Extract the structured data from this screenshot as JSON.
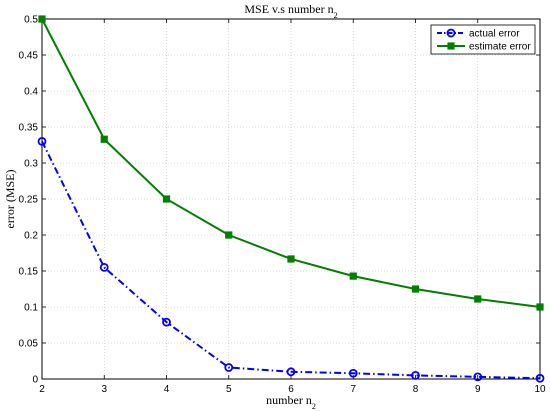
{
  "chart_data": {
    "type": "line",
    "title": "MSE v.s number n",
    "title_subscript": "2",
    "xlabel": "number n",
    "xlabel_subscript": "2",
    "ylabel": "error (MSE)",
    "xlim": [
      2,
      10
    ],
    "ylim": [
      0,
      0.5
    ],
    "x_ticks": [
      "2",
      "3",
      "4",
      "5",
      "6",
      "7",
      "8",
      "9",
      "10"
    ],
    "y_ticks": [
      "0",
      "0.05",
      "0.1",
      "0.15",
      "0.2",
      "0.25",
      "0.3",
      "0.35",
      "0.4",
      "0.45",
      "0.5"
    ],
    "grid": true,
    "legend_position": "top-right",
    "x": [
      2,
      3,
      4,
      5,
      6,
      7,
      8,
      9,
      10
    ],
    "series": [
      {
        "name": "actual  error",
        "values": [
          0.33,
          0.155,
          0.079,
          0.016,
          0.01,
          0.008,
          0.005,
          0.003,
          0.001
        ],
        "color": "#0000ff",
        "marker": "circle",
        "line_style": "dash-dot"
      },
      {
        "name": "estimate  error",
        "values": [
          0.5,
          0.333,
          0.25,
          0.2,
          0.1667,
          0.1429,
          0.125,
          0.1111,
          0.1
        ],
        "color": "#007f00",
        "marker": "square",
        "line_style": "solid"
      }
    ]
  }
}
